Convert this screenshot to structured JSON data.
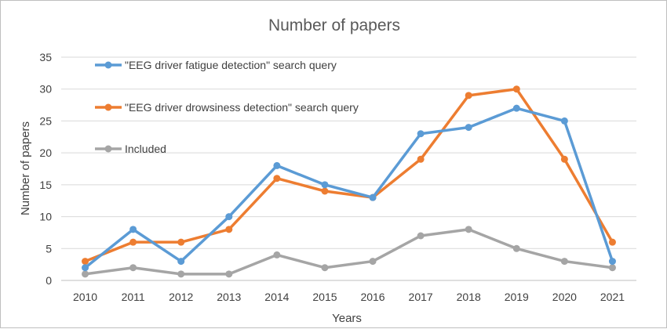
{
  "chart_data": {
    "type": "line",
    "title": "Number of papers",
    "xlabel": "Years",
    "ylabel": "Number of papers",
    "categories": [
      "2010",
      "2011",
      "2012",
      "2013",
      "2014",
      "2015",
      "2016",
      "2017",
      "2018",
      "2019",
      "2020",
      "2021"
    ],
    "ylim": [
      0,
      35
    ],
    "yticks": [
      "0",
      "5",
      "10",
      "15",
      "20",
      "25",
      "30",
      "35"
    ],
    "grid": true,
    "legend_position": "top-left",
    "series": [
      {
        "name": "\"EEG driver fatigue detection\" search query",
        "color": "#5b9bd5",
        "values": [
          2,
          8,
          3,
          10,
          18,
          15,
          13,
          23,
          24,
          27,
          25,
          3
        ]
      },
      {
        "name": "\"EEG driver drowsiness detection\" search query",
        "color": "#ed7d31",
        "values": [
          3,
          6,
          6,
          8,
          16,
          14,
          13,
          19,
          29,
          30,
          19,
          6
        ]
      },
      {
        "name": "Included",
        "color": "#a5a5a5",
        "values": [
          1,
          2,
          1,
          1,
          4,
          2,
          3,
          7,
          8,
          5,
          3,
          2
        ]
      }
    ]
  }
}
